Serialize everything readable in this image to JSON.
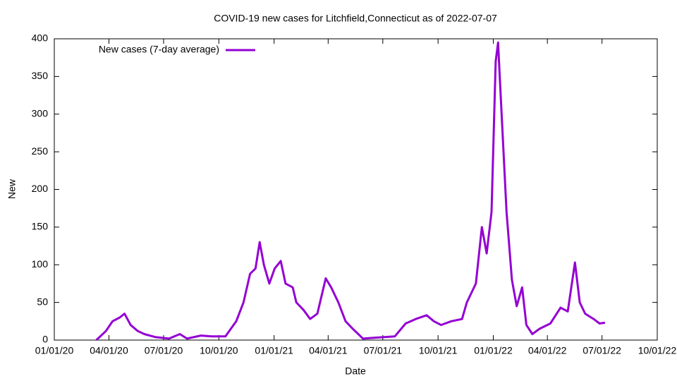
{
  "chart_data": {
    "type": "line",
    "title": "COVID-19 new cases for Litchfield,Connecticut as of 2022-07-07",
    "x_label": "Date",
    "y_label": "New",
    "x": [
      "2020-03-11",
      "2020-03-27",
      "2020-04-07",
      "2020-04-19",
      "2020-04-27",
      "2020-05-07",
      "2020-05-19",
      "2020-05-30",
      "2020-06-17",
      "2020-07-10",
      "2020-07-28",
      "2020-08-09",
      "2020-09-01",
      "2020-09-19",
      "2020-10-12",
      "2020-10-30",
      "2020-11-11",
      "2020-11-22",
      "2020-12-01",
      "2020-12-08",
      "2020-12-15",
      "2020-12-24",
      "2021-01-02",
      "2021-01-12",
      "2021-01-20",
      "2021-02-01",
      "2021-02-07",
      "2021-02-19",
      "2021-03-02",
      "2021-03-14",
      "2021-03-28",
      "2021-04-06",
      "2021-04-18",
      "2021-04-30",
      "2021-05-12",
      "2021-05-29",
      "2021-06-16",
      "2021-07-04",
      "2021-07-21",
      "2021-08-08",
      "2021-08-25",
      "2021-09-12",
      "2021-09-24",
      "2021-10-06",
      "2021-10-23",
      "2021-11-10",
      "2021-11-18",
      "2021-12-03",
      "2021-12-13",
      "2021-12-21",
      "2021-12-29",
      "2022-01-05",
      "2022-01-09",
      "2022-01-13",
      "2022-01-23",
      "2022-02-01",
      "2022-02-09",
      "2022-02-18",
      "2022-02-25",
      "2022-03-07",
      "2022-03-19",
      "2022-04-06",
      "2022-04-23",
      "2022-05-05",
      "2022-05-17",
      "2022-05-25",
      "2022-06-03",
      "2022-06-17",
      "2022-06-27",
      "2022-07-06"
    ],
    "series": [
      {
        "name": "New cases (7-day average)",
        "color": "#9400d3",
        "values": [
          0,
          12,
          25,
          30,
          35,
          20,
          12,
          8,
          4,
          2,
          8,
          2,
          6,
          5,
          5,
          25,
          50,
          88,
          95,
          130,
          100,
          75,
          95,
          105,
          75,
          70,
          50,
          40,
          28,
          35,
          82,
          70,
          50,
          25,
          15,
          2,
          3,
          4,
          5,
          22,
          28,
          33,
          25,
          20,
          25,
          28,
          50,
          75,
          150,
          115,
          170,
          370,
          395,
          330,
          170,
          80,
          45,
          70,
          20,
          8,
          15,
          22,
          43,
          38,
          103,
          50,
          35,
          28,
          22,
          23
        ]
      }
    ],
    "xlim": [
      "2020-01-01",
      "2022-10-01"
    ],
    "xticks": [
      {
        "value": "2020-01-01",
        "label": "01/01/20"
      },
      {
        "value": "2020-04-01",
        "label": "04/01/20"
      },
      {
        "value": "2020-07-01",
        "label": "07/01/20"
      },
      {
        "value": "2020-10-01",
        "label": "10/01/20"
      },
      {
        "value": "2021-01-01",
        "label": "01/01/21"
      },
      {
        "value": "2021-04-01",
        "label": "04/01/21"
      },
      {
        "value": "2021-07-01",
        "label": "07/01/21"
      },
      {
        "value": "2021-10-01",
        "label": "10/01/21"
      },
      {
        "value": "2022-01-01",
        "label": "01/01/22"
      },
      {
        "value": "2022-04-01",
        "label": "04/01/22"
      },
      {
        "value": "2022-07-01",
        "label": "07/01/22"
      },
      {
        "value": "2022-10-01",
        "label": "10/01/22"
      }
    ],
    "ylim": [
      0,
      400
    ],
    "yticks": [
      0,
      50,
      100,
      150,
      200,
      250,
      300,
      350,
      400
    ],
    "legend": "top-left"
  }
}
